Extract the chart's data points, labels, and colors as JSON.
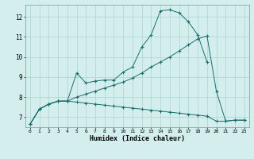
{
  "xlabel": "Humidex (Indice chaleur)",
  "bg_color": "#d4eeee",
  "grid_color": "#aad4d4",
  "line_color": "#1a6e6a",
  "xlim": [
    -0.5,
    23.5
  ],
  "ylim": [
    6.5,
    12.6
  ],
  "yticks": [
    7,
    8,
    9,
    10,
    11,
    12
  ],
  "xticks": [
    0,
    1,
    2,
    3,
    4,
    5,
    6,
    7,
    8,
    9,
    10,
    11,
    12,
    13,
    14,
    15,
    16,
    17,
    18,
    19,
    20,
    21,
    22,
    23
  ],
  "line1_x": [
    0,
    1,
    2,
    3,
    4,
    5,
    6,
    7,
    8,
    9,
    10,
    11,
    12,
    13,
    14,
    15,
    16,
    17,
    18,
    19,
    20,
    21,
    22,
    23
  ],
  "line1_y": [
    6.65,
    7.4,
    7.65,
    7.8,
    7.8,
    9.2,
    8.7,
    8.8,
    8.85,
    8.85,
    9.25,
    9.5,
    10.5,
    11.1,
    12.3,
    12.35,
    12.2,
    11.75,
    11.1,
    9.75,
    null,
    null,
    null,
    null
  ],
  "line2_x": [
    0,
    1,
    2,
    3,
    4,
    5,
    6,
    7,
    8,
    9,
    10,
    11,
    12,
    13,
    14,
    15,
    16,
    17,
    18,
    19,
    20,
    21,
    22,
    23
  ],
  "line2_y": [
    6.65,
    7.4,
    7.65,
    7.8,
    7.8,
    8.0,
    8.15,
    8.3,
    8.45,
    8.6,
    8.75,
    8.95,
    9.2,
    9.5,
    9.75,
    10.0,
    10.3,
    10.6,
    10.9,
    11.05,
    8.3,
    6.8,
    6.85,
    6.85
  ],
  "line3_x": [
    0,
    1,
    2,
    3,
    4,
    5,
    6,
    7,
    8,
    9,
    10,
    11,
    12,
    13,
    14,
    15,
    16,
    17,
    18,
    19,
    20,
    21,
    22,
    23
  ],
  "line3_y": [
    6.65,
    7.4,
    7.65,
    7.8,
    7.8,
    7.75,
    7.7,
    7.65,
    7.6,
    7.55,
    7.5,
    7.45,
    7.4,
    7.35,
    7.3,
    7.25,
    7.2,
    7.15,
    7.1,
    7.05,
    6.8,
    6.8,
    6.85,
    6.85
  ]
}
